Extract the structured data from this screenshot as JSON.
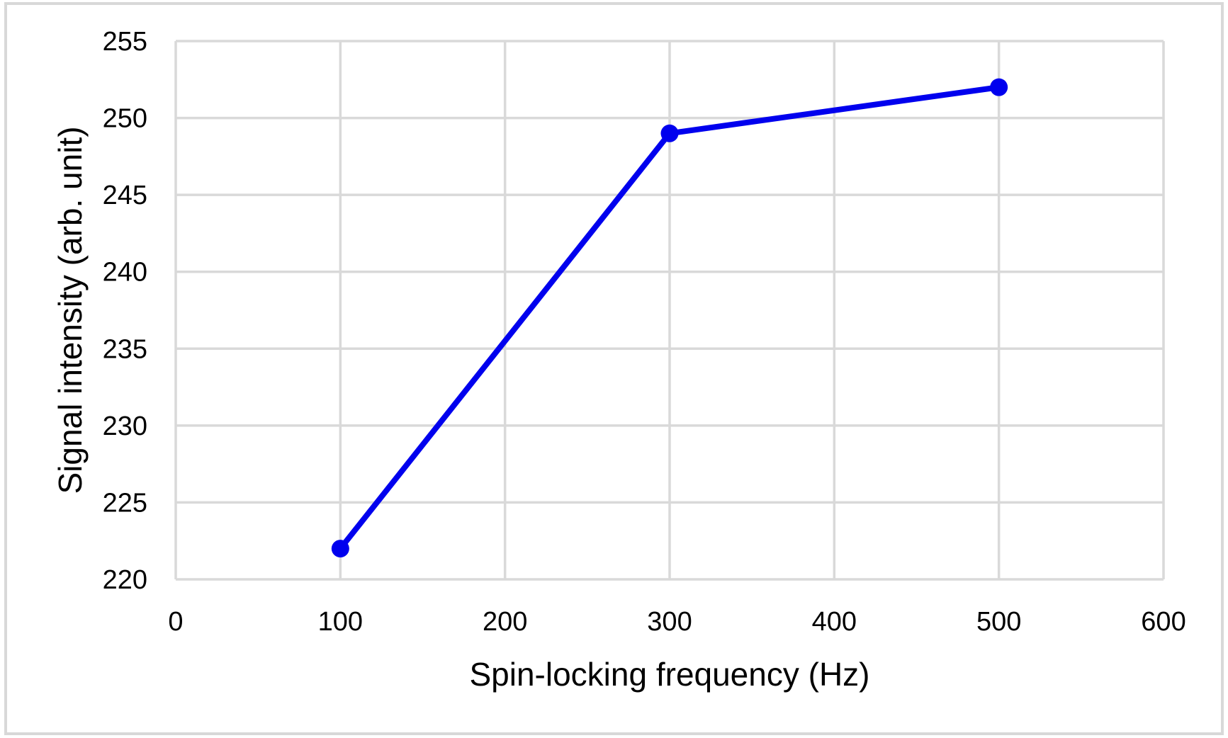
{
  "chart_data": {
    "type": "line",
    "title": "",
    "xlabel": "Spin-locking frequency (Hz)",
    "ylabel": "Signal intensity (arb. unit)",
    "series": [
      {
        "name": "Signal intensity",
        "x": [
          100,
          300,
          500
        ],
        "y": [
          222,
          249,
          252
        ]
      }
    ],
    "xlim": [
      0,
      600
    ],
    "ylim": [
      220,
      255
    ],
    "xticks": [
      0,
      100,
      200,
      300,
      400,
      500,
      600
    ],
    "yticks": [
      220,
      225,
      230,
      235,
      240,
      245,
      250,
      255
    ],
    "grid": true,
    "legend_position": "none",
    "colors": {
      "line": "#0000ee",
      "marker": "#0000ee",
      "gridline": "#d9d9d9",
      "plot_border": "#d9d9d9",
      "text": "#000000",
      "frame_border": "#d8d8d8",
      "background": "#ffffff"
    }
  }
}
